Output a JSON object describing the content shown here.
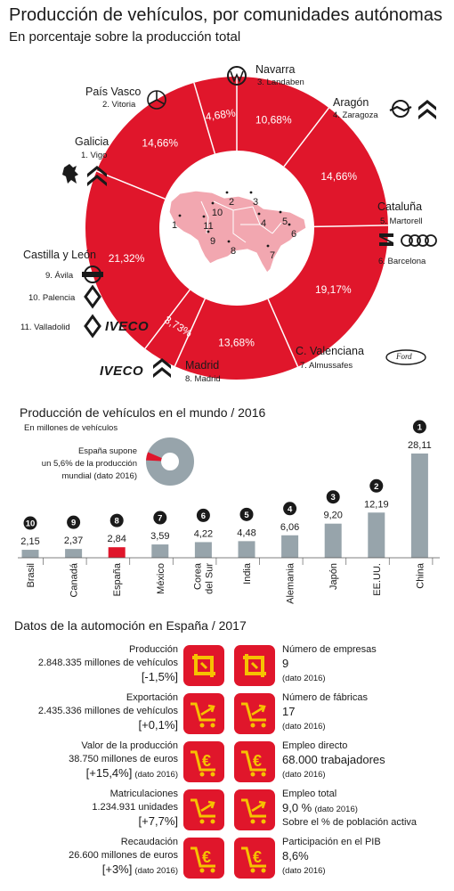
{
  "header": {
    "title": "Producción de vehículos, por comunidades autónomas",
    "subtitle": "En porcentaje sobre la producción total"
  },
  "donut": {
    "map_numbers": [
      "1",
      "2",
      "3",
      "4",
      "5",
      "6",
      "7",
      "8",
      "9",
      "10",
      "11"
    ],
    "regions": {
      "navarra": {
        "name": "Navarra",
        "plant": "3. Landaben"
      },
      "pais_vasco": {
        "name": "País Vasco",
        "plant": "2. Vitoria"
      },
      "aragon": {
        "name": "Aragón",
        "plant": "4. Zaragoza"
      },
      "galicia": {
        "name": "Galicia",
        "plant": "1. Vigo"
      },
      "cataluna": {
        "name": "Cataluña",
        "plant1": "5. Martorell",
        "plant2": "6. Barcelona"
      },
      "castilla": {
        "name": "Castilla y León",
        "plant1": "9. Ávila",
        "plant2": "10. Palencia",
        "plant3": "11. Valladolid"
      },
      "madrid": {
        "name": "Madrid",
        "plant": "8. Madrid"
      },
      "valencia": {
        "name": "C. Valenciana",
        "plant": "7. Almussafes"
      }
    },
    "brands": {
      "iveco": "IVECO",
      "ford": "Ford"
    }
  },
  "bar_section": {
    "title": "Producción de vehículos en el mundo / 2016",
    "unit": "En millones de vehículos",
    "note_line1": "España supone",
    "note_line2": "un 5,6% de la producción",
    "note_line3": "mundial (dato 2016)"
  },
  "datos": {
    "title": "Datos de la automoción en España / 2017",
    "left": [
      {
        "label": "Producción",
        "value": "2.848.335 millones de vehículos",
        "change": "[-1,5%]",
        "note": ""
      },
      {
        "label": "Exportación",
        "value": "2.435.336 millones de vehículos",
        "change": "[+0,1%]",
        "note": ""
      },
      {
        "label": "Valor de la producción",
        "value": "38.750 millones de euros",
        "change": "[+15,4%]",
        "note": "(dato 2016)"
      },
      {
        "label": "Matriculaciones",
        "value": "1.234.931 unidades",
        "change": "[+7,7%]",
        "note": ""
      },
      {
        "label": "Recaudación",
        "value": "26.600 millones de euros",
        "change": "[+3%]",
        "note": "(dato 2016)"
      }
    ],
    "right": [
      {
        "label": "Número de empresas",
        "value": "9",
        "note": "(dato 2016)"
      },
      {
        "label": "Número de fábricas",
        "value": "17",
        "note": "(dato 2016)"
      },
      {
        "label": "Empleo directo",
        "value": "68.000 trabajadores",
        "note": "(dato 2016)"
      },
      {
        "label": "Empleo total",
        "value": "9,0 %",
        "value_note": "(dato 2016)",
        "note": "Sobre el % de población activa"
      },
      {
        "label": "Participación en el PIB",
        "value": "8,6%",
        "note": "(dato 2016)"
      }
    ],
    "icons": [
      "crop-icon",
      "cart-icon",
      "euro-cart-icon",
      "cart-icon",
      "euro-cart-icon"
    ]
  },
  "colors": {
    "red": "#e0162b",
    "gray": "#97a4ab",
    "map_pink": "#f2a7b0",
    "dark": "#1a1a1a"
  },
  "chart_data": [
    {
      "type": "pie",
      "title": "Producción de vehículos, por comunidades autónomas",
      "subtitle": "En porcentaje sobre la producción total",
      "categories": [
        "Navarra",
        "Aragón",
        "Cataluña",
        "C. Valenciana",
        "Madrid",
        "Castilla y León",
        "Galicia",
        "País Vasco"
      ],
      "values": [
        10.68,
        14.66,
        19.17,
        13.68,
        3.73,
        21.32,
        14.66,
        4.68
      ],
      "labels": [
        "10,68%",
        "14,66%",
        "19,17%",
        "13,68%",
        "3,73%",
        "21,32%",
        "14,66%",
        "4,68%"
      ],
      "donut": true
    },
    {
      "type": "bar",
      "title": "Producción de vehículos en el mundo / 2016",
      "ylabel": "En millones de vehículos",
      "categories": [
        "Brasil",
        "Canadá",
        "España",
        "México",
        "Corea del Sur",
        "India",
        "Alemania",
        "Japón",
        "EE.UU.",
        "China"
      ],
      "values": [
        2.15,
        2.37,
        2.84,
        3.59,
        4.22,
        4.48,
        6.06,
        9.2,
        12.19,
        28.11
      ],
      "labels": [
        "2,15",
        "2,37",
        "2,84",
        "3,59",
        "4,22",
        "4,48",
        "6,06",
        "9,20",
        "12,19",
        "28,11"
      ],
      "ranks": [
        "10",
        "9",
        "8",
        "7",
        "6",
        "5",
        "4",
        "3",
        "2",
        "1"
      ],
      "highlight": "España"
    },
    {
      "type": "pie",
      "categories": [
        "España",
        "Resto"
      ],
      "values": [
        5.6,
        94.4
      ]
    }
  ]
}
